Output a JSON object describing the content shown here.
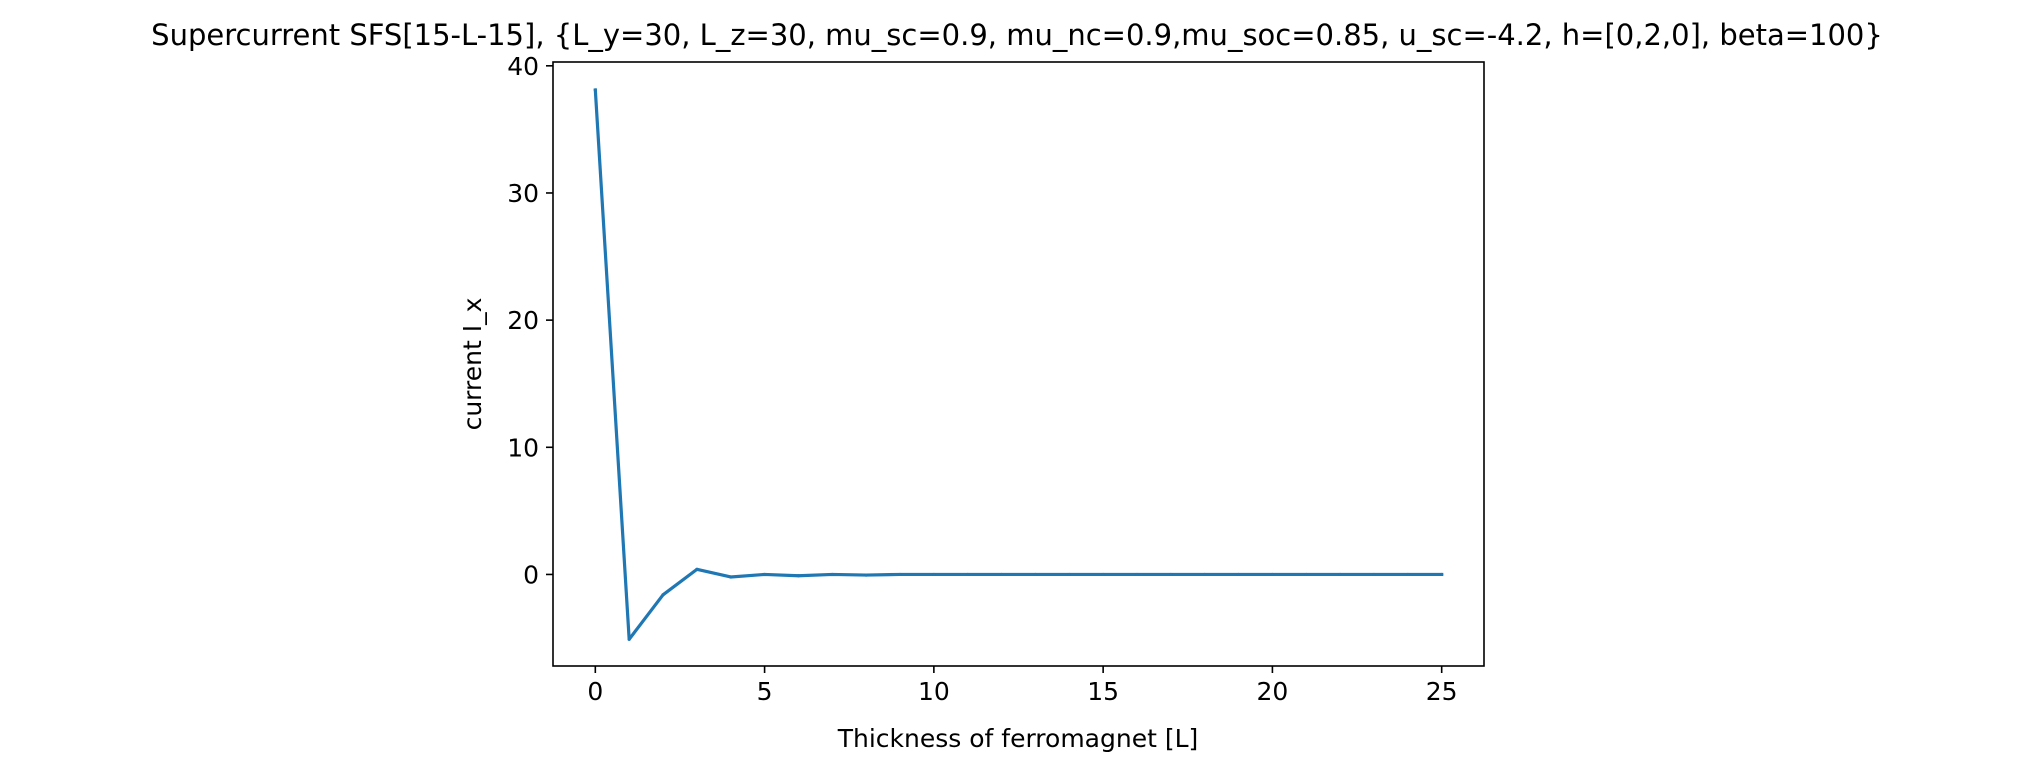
{
  "chart_data": {
    "type": "line",
    "title": "Supercurrent SFS[15-L-15], {L_y=30, L_z=30, mu_sc=0.9, mu_nc=0.9,mu_soc=0.85, u_sc=-4.2, h=[0,2,0], beta=100}",
    "xlabel": "Thickness of ferromagnet [L]",
    "ylabel": "current I_x",
    "xlim": [
      -1.25,
      26.25
    ],
    "ylim": [
      -7.2,
      40.3
    ],
    "xticks": [
      0,
      5,
      10,
      15,
      20,
      25
    ],
    "yticks": [
      0,
      10,
      20,
      30,
      40
    ],
    "grid": false,
    "series": [
      {
        "color": "#1f77b4",
        "x": [
          0,
          1,
          2,
          3,
          4,
          5,
          6,
          7,
          8,
          9,
          10,
          11,
          12,
          13,
          14,
          15,
          16,
          17,
          18,
          19,
          20,
          21,
          22,
          23,
          24,
          25
        ],
        "y": [
          38.1,
          -5.1,
          -1.6,
          0.4,
          -0.2,
          0.0,
          -0.1,
          0.0,
          -0.05,
          0.0,
          0.0,
          0.0,
          0.0,
          0.0,
          0.0,
          0.0,
          0.0,
          0.0,
          0.0,
          0.0,
          0.0,
          0.0,
          0.0,
          0.0,
          0.0,
          0.0
        ]
      }
    ]
  }
}
